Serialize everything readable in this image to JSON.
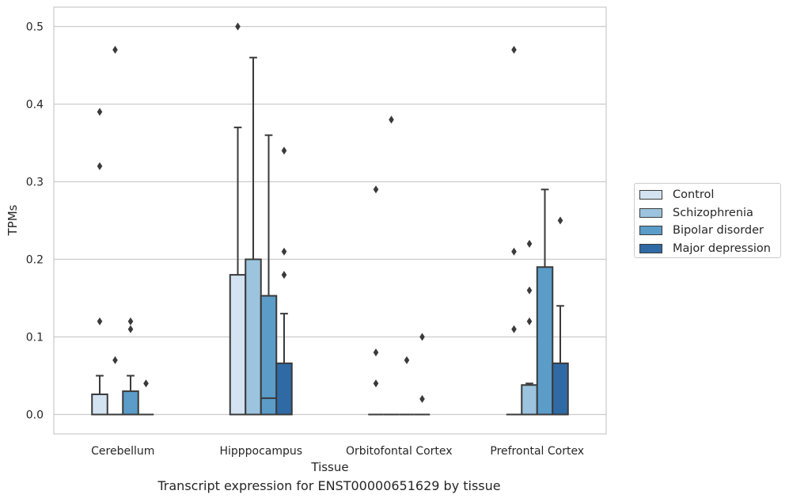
{
  "chart_data": {
    "type": "box",
    "title": "Transcript expression for ENST00000651629 by tissue",
    "xlabel": "Tissue",
    "ylabel": "TPMs",
    "ylim": [
      -0.025,
      0.525
    ],
    "yticks": [
      "0.0",
      "0.1",
      "0.2",
      "0.3",
      "0.4",
      "0.5"
    ],
    "categories": [
      "Cerebellum",
      "Hipppocampus",
      "Orbitofontal Cortex",
      "Prefrontal Cortex"
    ],
    "grid": true,
    "legend_position": "right",
    "series": [
      {
        "name": "Control",
        "color": "#d4e3f2",
        "boxes": [
          {
            "q1": 0.0,
            "median": 0.0,
            "q3": 0.026,
            "whisker_low": 0.0,
            "whisker_high": 0.05,
            "outliers": [
              0.12,
              0.32,
              0.39
            ]
          },
          {
            "q1": 0.0,
            "median": 0.0,
            "q3": 0.18,
            "whisker_low": 0.0,
            "whisker_high": 0.37,
            "outliers": [
              0.5
            ]
          },
          {
            "q1": 0.0,
            "median": 0.0,
            "q3": 0.0,
            "whisker_low": 0.0,
            "whisker_high": 0.0,
            "outliers": [
              0.04,
              0.08,
              0.29
            ]
          },
          {
            "q1": 0.0,
            "median": 0.0,
            "q3": 0.0,
            "whisker_low": 0.0,
            "whisker_high": 0.0,
            "outliers": [
              0.11,
              0.21,
              0.47
            ]
          }
        ]
      },
      {
        "name": "Schizophrenia",
        "color": "#9cc4de",
        "boxes": [
          {
            "q1": 0.0,
            "median": 0.0,
            "q3": 0.0,
            "whisker_low": 0.0,
            "whisker_high": 0.0,
            "outliers": [
              0.07,
              0.47
            ]
          },
          {
            "q1": 0.0,
            "median": 0.0,
            "q3": 0.2,
            "whisker_low": 0.0,
            "whisker_high": 0.46,
            "outliers": []
          },
          {
            "q1": 0.0,
            "median": 0.0,
            "q3": 0.0,
            "whisker_low": 0.0,
            "whisker_high": 0.0,
            "outliers": [
              0.38
            ]
          },
          {
            "q1": 0.0,
            "median": 0.0,
            "q3": 0.038,
            "whisker_low": 0.0,
            "whisker_high": 0.04,
            "outliers": [
              0.12,
              0.16,
              0.22
            ]
          }
        ]
      },
      {
        "name": "Bipolar disorder",
        "color": "#5b9cc9",
        "boxes": [
          {
            "q1": 0.0,
            "median": 0.0,
            "q3": 0.03,
            "whisker_low": 0.0,
            "whisker_high": 0.05,
            "outliers": [
              0.11,
              0.12
            ]
          },
          {
            "q1": 0.0,
            "median": 0.021,
            "q3": 0.153,
            "whisker_low": 0.0,
            "whisker_high": 0.36,
            "outliers": []
          },
          {
            "q1": 0.0,
            "median": 0.0,
            "q3": 0.0,
            "whisker_low": 0.0,
            "whisker_high": 0.0,
            "outliers": [
              0.07
            ]
          },
          {
            "q1": 0.0,
            "median": 0.0,
            "q3": 0.19,
            "whisker_low": 0.0,
            "whisker_high": 0.29,
            "outliers": []
          }
        ]
      },
      {
        "name": "Major depression",
        "color": "#2f6aa5",
        "boxes": [
          {
            "q1": 0.0,
            "median": 0.0,
            "q3": 0.0,
            "whisker_low": 0.0,
            "whisker_high": 0.0,
            "outliers": [
              0.04
            ]
          },
          {
            "q1": 0.0,
            "median": 0.0,
            "q3": 0.066,
            "whisker_low": 0.0,
            "whisker_high": 0.13,
            "outliers": [
              0.18,
              0.21,
              0.34
            ]
          },
          {
            "q1": 0.0,
            "median": 0.0,
            "q3": 0.0,
            "whisker_low": 0.0,
            "whisker_high": 0.0,
            "outliers": [
              0.02,
              0.1
            ]
          },
          {
            "q1": 0.0,
            "median": 0.0,
            "q3": 0.066,
            "whisker_low": 0.0,
            "whisker_high": 0.14,
            "outliers": [
              0.25
            ]
          }
        ]
      }
    ]
  }
}
